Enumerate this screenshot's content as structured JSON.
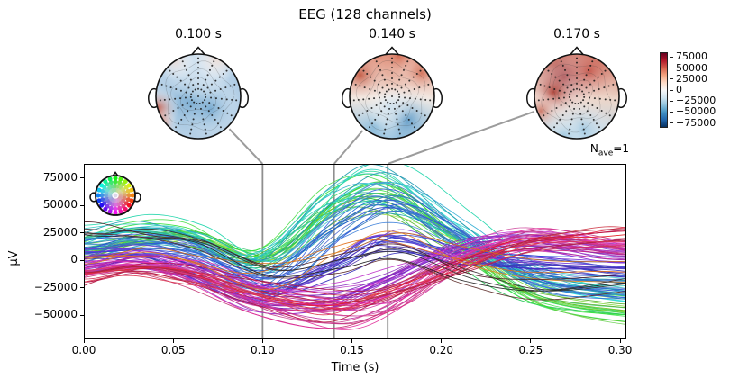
{
  "figure": {
    "title": "EEG (128 channels)",
    "background": "#ffffff",
    "nave": {
      "text_main": "N",
      "text_sub": "ave",
      "text_eq": "=1"
    }
  },
  "colorbar": {
    "tick_labels": [
      "75000",
      "50000",
      "25000",
      "0",
      "−25000",
      "−50000",
      "−75000"
    ],
    "tick_values": [
      75000,
      50000,
      25000,
      0,
      -25000,
      -50000,
      -75000
    ],
    "vmin": -86000,
    "vmax": 86000,
    "cmap_top_to_bottom": [
      "#67001f",
      "#b2182b",
      "#d6604d",
      "#f4a582",
      "#fddbc7",
      "#f7f7f7",
      "#d1e5f0",
      "#92c5de",
      "#4393c3",
      "#2166ac",
      "#053061"
    ]
  },
  "chart_data": [
    {
      "type": "line",
      "id": "butterfly",
      "xlabel": "Time (s)",
      "ylabel": "µV",
      "xlim": [
        0,
        0.3035
      ],
      "ylim": [
        -72000,
        88000
      ],
      "xtick_labels": [
        "0.00",
        "0.05",
        "0.10",
        "0.15",
        "0.20",
        "0.25",
        "0.30"
      ],
      "xtick_values": [
        0,
        0.05,
        0.1,
        0.15,
        0.2,
        0.25,
        0.3
      ],
      "ytick_labels": [
        "75000",
        "50000",
        "25000",
        "0",
        "−25000",
        "−50000"
      ],
      "ytick_values": [
        75000,
        50000,
        25000,
        0,
        -25000,
        -50000
      ],
      "n_channels": 128,
      "time_markers": [
        0.1,
        0.14,
        0.17
      ],
      "marker_color": "#8f8f8f",
      "x_keypoints": [
        0,
        0.03,
        0.06,
        0.1,
        0.14,
        0.17,
        0.21,
        0.25,
        0.3
      ],
      "series_groups": [
        {
          "name": "green",
          "hue": [
            80,
            150
          ],
          "sat": [
            55,
            78
          ],
          "light": [
            42,
            60
          ],
          "count": 20,
          "values": [
            8000,
            20000,
            22000,
            2000,
            48000,
            55000,
            12000,
            -30000,
            -42000
          ]
        },
        {
          "name": "teal",
          "hue": [
            152,
            196
          ],
          "sat": [
            55,
            78
          ],
          "light": [
            40,
            58
          ],
          "count": 16,
          "values": [
            18000,
            26000,
            22000,
            -2000,
            52000,
            68000,
            28000,
            -14000,
            -30000
          ]
        },
        {
          "name": "cyan-blue",
          "hue": [
            197,
            228
          ],
          "sat": [
            55,
            75
          ],
          "light": [
            45,
            62
          ],
          "count": 16,
          "values": [
            12000,
            16000,
            8000,
            -18000,
            30000,
            52000,
            18000,
            -18000,
            -26000
          ]
        },
        {
          "name": "blue-violet",
          "hue": [
            228,
            268
          ],
          "sat": [
            50,
            70
          ],
          "light": [
            42,
            58
          ],
          "count": 18,
          "values": [
            2000,
            6000,
            -4000,
            -28000,
            -6000,
            18000,
            4000,
            -2000,
            -8000
          ]
        },
        {
          "name": "purple",
          "hue": [
            268,
            308
          ],
          "sat": [
            50,
            72
          ],
          "light": [
            38,
            54
          ],
          "count": 20,
          "values": [
            -6000,
            0,
            -10000,
            -34000,
            -34000,
            -16000,
            10000,
            18000,
            8000
          ]
        },
        {
          "name": "magenta-pink",
          "hue": [
            308,
            340
          ],
          "sat": [
            55,
            80
          ],
          "light": [
            42,
            58
          ],
          "count": 18,
          "values": [
            -10000,
            -4000,
            -12000,
            -38000,
            -50000,
            -40000,
            0,
            20000,
            12000
          ]
        },
        {
          "name": "red-crimson",
          "hue": [
            340,
            359
          ],
          "sat": [
            60,
            82
          ],
          "light": [
            40,
            55
          ],
          "count": 12,
          "values": [
            -12000,
            -6000,
            -12000,
            -26000,
            -38000,
            -28000,
            -6000,
            14000,
            24000
          ]
        },
        {
          "name": "orange",
          "hue": [
            22,
            45
          ],
          "sat": [
            70,
            85
          ],
          "light": [
            45,
            55
          ],
          "count": 3,
          "values": [
            2000,
            8000,
            2000,
            -14000,
            10000,
            26000,
            6000,
            -6000,
            -10000
          ]
        },
        {
          "name": "dark",
          "hue": [
            0,
            360
          ],
          "sat": [
            0,
            0
          ],
          "light": [
            12,
            25
          ],
          "count": 5,
          "colors": [
            "#2e2e2e",
            "#4d1b22",
            "#3a2c30",
            "#202020",
            "#5c2b28"
          ],
          "values": [
            26000,
            22000,
            12000,
            -10000,
            -2000,
            6000,
            -18000,
            -28000,
            -18000
          ]
        }
      ]
    },
    {
      "type": "heatmap",
      "id": "topomap-1",
      "time_label": "0.100 s",
      "time_s": 0.1,
      "vmin": -75000,
      "vmax": 75000,
      "base": "#aecbe4",
      "blobs": [
        {
          "x": -0.15,
          "y": 0.15,
          "r": 0.75,
          "c": "#5e9bc8",
          "a": 0.85
        },
        {
          "x": 0.3,
          "y": 0.3,
          "r": 0.45,
          "c": "#5e9bc8",
          "a": 0.6
        },
        {
          "x": 0.0,
          "y": -0.65,
          "r": 0.5,
          "c": "#cfe0ee",
          "a": 0.9
        },
        {
          "x": 0.45,
          "y": -0.9,
          "r": 0.35,
          "c": "#f3ddd2",
          "a": 0.9
        },
        {
          "x": -0.55,
          "y": -0.85,
          "r": 0.3,
          "c": "#f0dcd3",
          "a": 0.8
        },
        {
          "x": -0.97,
          "y": 0.3,
          "r": 0.32,
          "c": "#c14b38",
          "a": 0.95
        },
        {
          "x": -0.9,
          "y": 0.65,
          "r": 0.25,
          "c": "#d96a4f",
          "a": 0.8
        }
      ]
    },
    {
      "type": "heatmap",
      "id": "topomap-2",
      "time_label": "0.140 s",
      "time_s": 0.14,
      "vmin": -75000,
      "vmax": 75000,
      "base_top": "#dc8168",
      "base_mid": "#f2e8e1",
      "base_bottom": "#7fb5d9",
      "blobs": [
        {
          "x": -0.75,
          "y": -0.5,
          "r": 0.4,
          "c": "#bd4b33",
          "a": 0.8
        },
        {
          "x": 0.7,
          "y": -0.55,
          "r": 0.35,
          "c": "#cc5f45",
          "a": 0.7
        },
        {
          "x": 0.15,
          "y": -0.95,
          "r": 0.3,
          "c": "#cc5f45",
          "a": 0.6
        },
        {
          "x": 0.35,
          "y": 0.55,
          "r": 0.5,
          "c": "#4d90c2",
          "a": 0.8
        },
        {
          "x": -0.45,
          "y": 0.75,
          "r": 0.4,
          "c": "#85b9da",
          "a": 0.7
        },
        {
          "x": -0.05,
          "y": 0.25,
          "r": 0.35,
          "c": "#cfe2ef",
          "a": 0.8
        }
      ]
    },
    {
      "type": "heatmap",
      "id": "topomap-3",
      "time_label": "0.170 s",
      "time_s": 0.17,
      "vmin": -75000,
      "vmax": 75000,
      "base_top": "#c4523c",
      "base_mid": "#edd5c8",
      "base_bottom": "#bcd8ea",
      "blobs": [
        {
          "x": -0.3,
          "y": -0.45,
          "r": 0.55,
          "c": "#8f1d25",
          "a": 0.9
        },
        {
          "x": -0.55,
          "y": -0.1,
          "r": 0.4,
          "c": "#a93226",
          "a": 0.8
        },
        {
          "x": 0.3,
          "y": -0.6,
          "r": 0.5,
          "c": "#c0453a",
          "a": 0.7
        },
        {
          "x": -0.85,
          "y": 0.35,
          "r": 0.3,
          "c": "#c4523c",
          "a": 0.7
        },
        {
          "x": 0.15,
          "y": 0.8,
          "r": 0.45,
          "c": "#9ec8e2",
          "a": 0.85
        },
        {
          "x": -0.3,
          "y": 0.95,
          "r": 0.3,
          "c": "#8fc0dd",
          "a": 0.7
        }
      ]
    }
  ],
  "electrodes": {
    "color": "#151515",
    "spokes": 15,
    "rings": [
      0.18,
      0.31,
      0.44,
      0.57,
      0.7,
      0.82,
      0.93
    ]
  },
  "sensor_legend": {
    "spokes": 20,
    "rings": [
      0.3,
      0.52,
      0.74,
      0.93
    ],
    "hue_at_top": 120
  }
}
